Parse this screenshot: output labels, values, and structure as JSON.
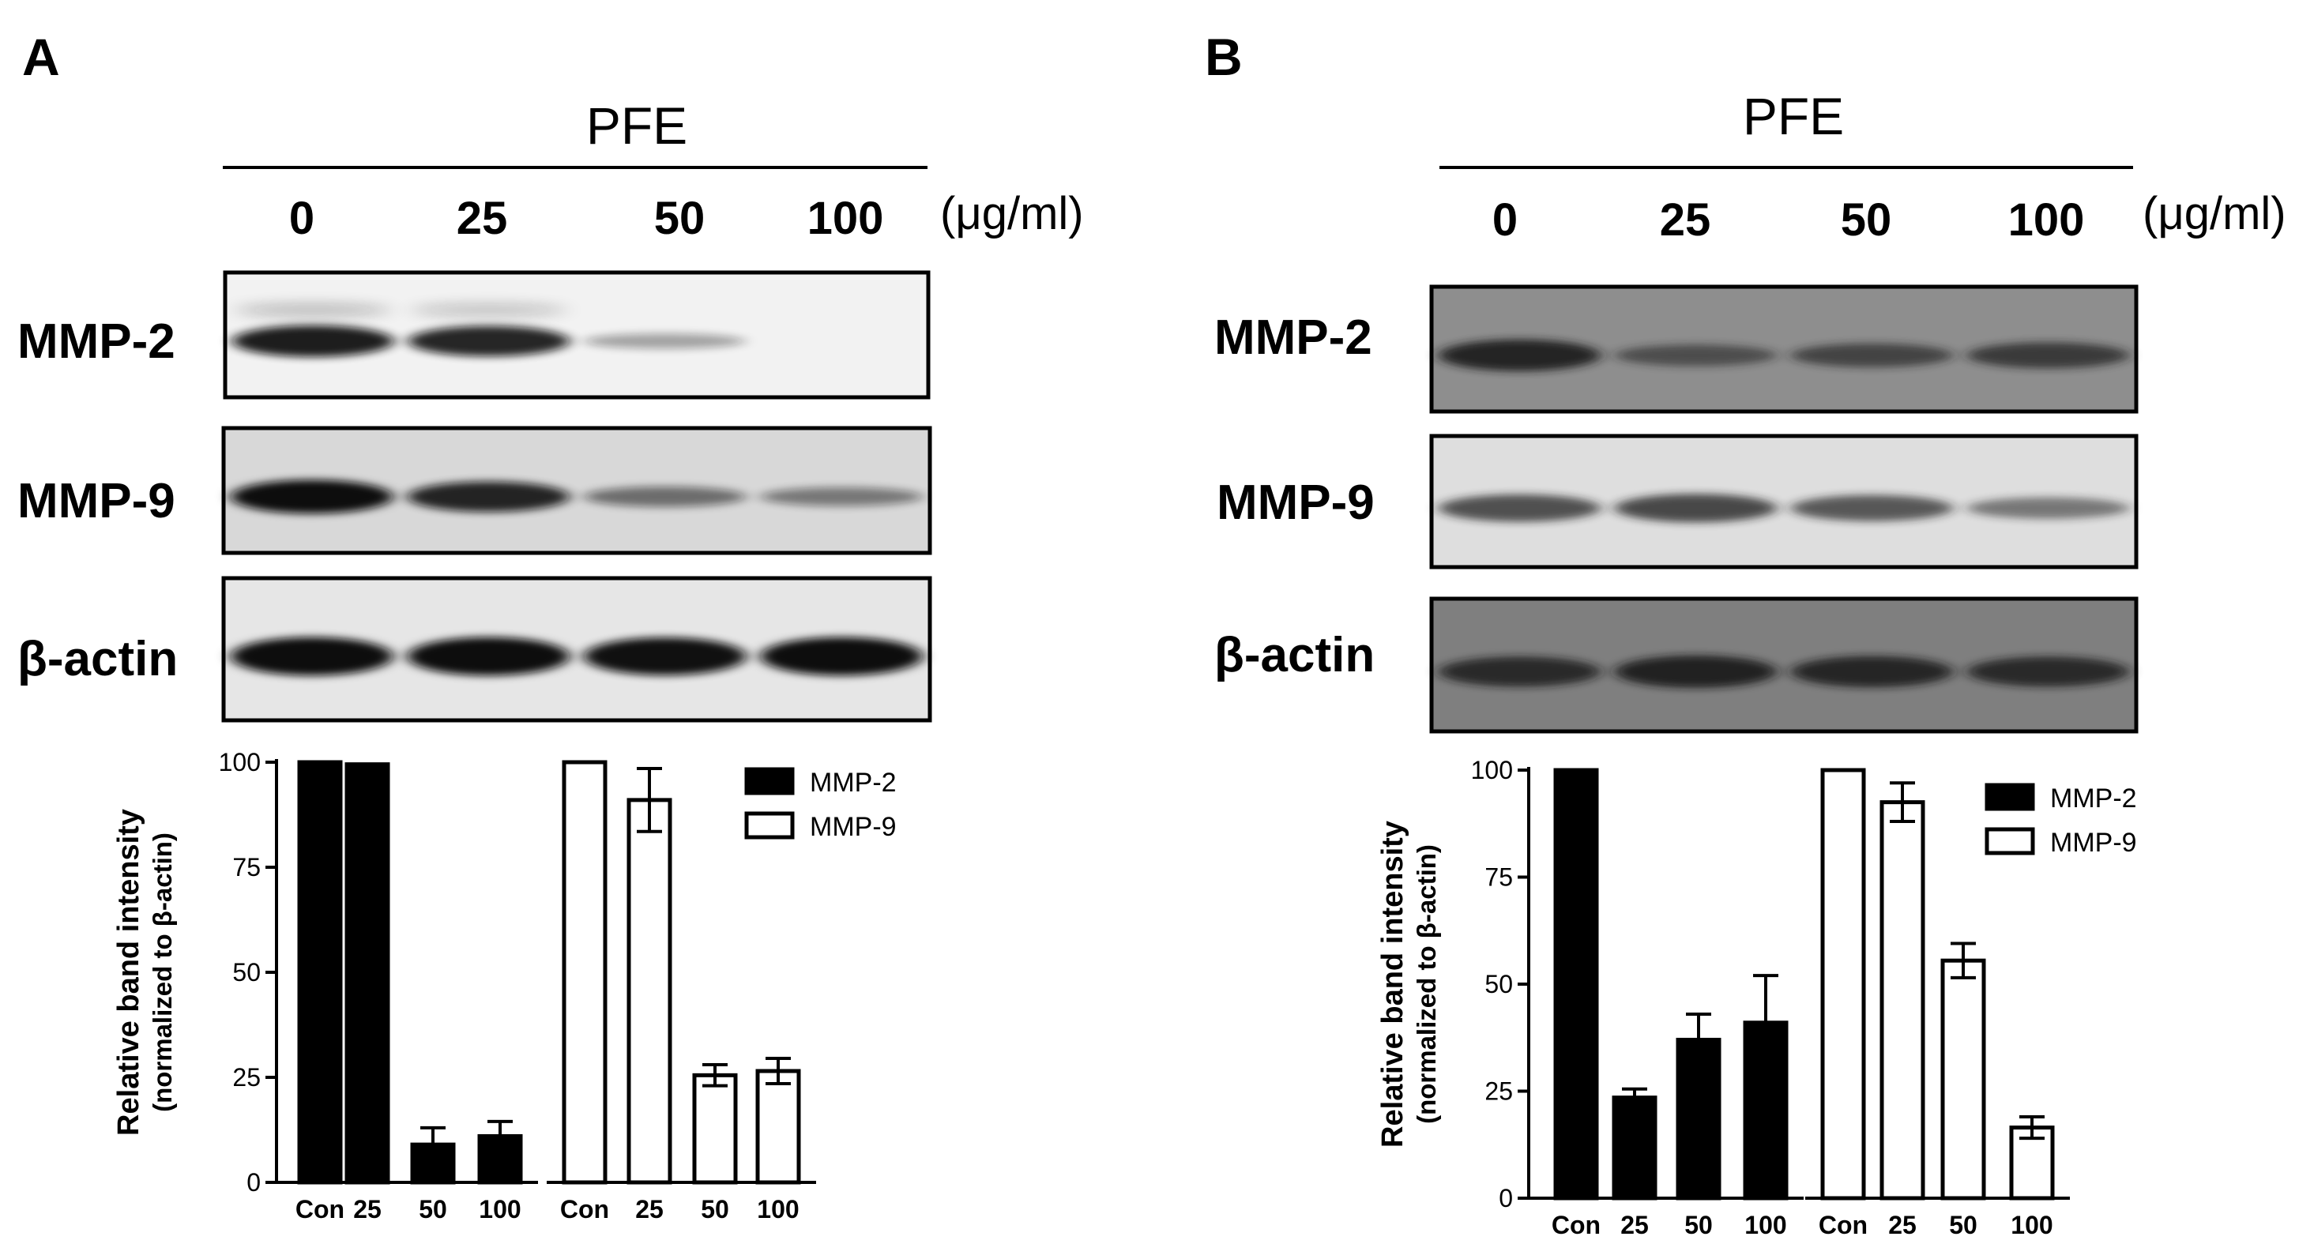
{
  "colors": {
    "filled_bar": "#000000",
    "open_bar": "#ffffff",
    "axis": "#000000",
    "blot_bg_a": "#f4f4f4",
    "blot_bg_b": "#9a9a9a"
  },
  "panels": [
    {
      "letter": "A",
      "treatment": "PFE",
      "doses": [
        "0",
        "25",
        "50",
        "100"
      ],
      "dose_unit": "(μg/ml)",
      "blots": [
        {
          "label": "MMP-2",
          "bands": [
            0.85,
            0.8,
            0.12,
            0.0
          ],
          "upper_bands": [
            0.25,
            0.22,
            0.0,
            0.0
          ]
        },
        {
          "label": "MMP-9",
          "bands": [
            0.95,
            0.8,
            0.35,
            0.28
          ],
          "upper_bands": []
        },
        {
          "label": "β-actin",
          "bands": [
            0.95,
            0.95,
            0.92,
            0.95
          ],
          "upper_bands": []
        }
      ]
    },
    {
      "letter": "B",
      "treatment": "PFE",
      "doses": [
        "0",
        "25",
        "50",
        "100"
      ],
      "dose_unit": "(μg/ml)",
      "blots": [
        {
          "label": "MMP-2",
          "bands": [
            0.85,
            0.4,
            0.5,
            0.6
          ],
          "upper_bands": []
        },
        {
          "label": "MMP-9",
          "bands": [
            0.6,
            0.65,
            0.55,
            0.35
          ],
          "upper_bands": []
        },
        {
          "label": "β-actin",
          "bands": [
            0.7,
            0.8,
            0.75,
            0.7
          ],
          "upper_bands": []
        }
      ]
    }
  ],
  "chart_data": [
    {
      "type": "bar",
      "panel": "A",
      "ylabel_line1": "Relative band intensity",
      "ylabel_line2": "(normalized to β-actin)",
      "ylim": [
        0,
        100
      ],
      "yticks": [
        "0",
        "25",
        "50",
        "75",
        "100"
      ],
      "categories": [
        "Con",
        "25",
        "50",
        "100"
      ],
      "legend_position": "top-right",
      "grid": false,
      "series": [
        {
          "name": "MMP-2",
          "fill": "filled",
          "values": [
            100,
            99.5,
            9,
            11
          ],
          "errors": [
            0,
            0,
            4,
            3.5
          ]
        },
        {
          "name": "MMP-9",
          "fill": "open",
          "values": [
            100,
            91,
            25.5,
            26.5
          ],
          "errors": [
            0,
            7.5,
            2.5,
            3
          ]
        }
      ]
    },
    {
      "type": "bar",
      "panel": "B",
      "ylabel_line1": "Relative band intensity",
      "ylabel_line2": "(normalized to β-actin)",
      "ylim": [
        0,
        100
      ],
      "yticks": [
        "0",
        "25",
        "50",
        "75",
        "100"
      ],
      "categories": [
        "Con",
        "25",
        "50",
        "100"
      ],
      "legend_position": "top-right",
      "grid": false,
      "series": [
        {
          "name": "MMP-2",
          "fill": "filled",
          "values": [
            100,
            23.5,
            37,
            41
          ],
          "errors": [
            0,
            2,
            6,
            11
          ]
        },
        {
          "name": "MMP-9",
          "fill": "open",
          "values": [
            100,
            92.5,
            55.5,
            16.5
          ],
          "errors": [
            0,
            4.5,
            4,
            2.5
          ]
        }
      ]
    }
  ]
}
